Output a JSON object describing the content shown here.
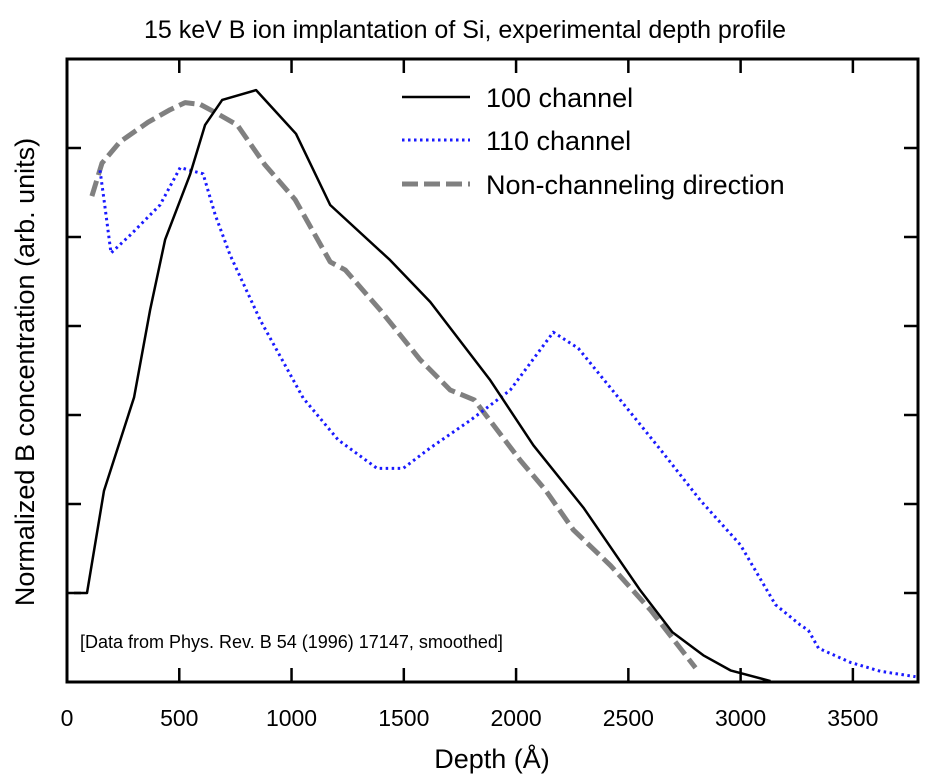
{
  "chart_data": {
    "type": "line",
    "title": "15 keV B ion implantation of Si, experimental depth profile",
    "xlabel": "Depth (Å)",
    "ylabel": "Normalized B concentration (arb. units)",
    "xlim": [
      0,
      3790
    ],
    "ylim": [
      0,
      7
    ],
    "x_ticks": [
      0,
      500,
      1000,
      1500,
      2000,
      2500,
      3000,
      3500
    ],
    "x_tick_labels": [
      "0",
      "500",
      "1000",
      "1500",
      "2000",
      "2500",
      "3000",
      "3500"
    ],
    "y_ticks": [
      1,
      2,
      3,
      4,
      5,
      6
    ],
    "y_tick_labels": [],
    "grid": false,
    "legend_position": "top-right",
    "annotation": "[Data from Phys. Rev. B 54 (1996) 17147, smoothed]",
    "series": [
      {
        "name": "100 channel",
        "color": "#000000",
        "style": "solid",
        "x": [
          31,
          89,
          165,
          299,
          370,
          437,
          548,
          615,
          691,
          842,
          1020,
          1172,
          1439,
          1618,
          1885,
          2077,
          2300,
          2553,
          2696,
          2834,
          2955,
          3133
        ],
        "y": [
          1.0,
          1.0,
          2.15,
          3.2,
          4.18,
          4.97,
          5.7,
          6.26,
          6.54,
          6.65,
          6.16,
          5.36,
          4.74,
          4.27,
          3.39,
          2.66,
          1.96,
          1.03,
          0.56,
          0.3,
          0.13,
          0.01
        ]
      },
      {
        "name": "110 channel",
        "color": "#1a1aff",
        "style": "dotted",
        "x": [
          147,
          165,
          196,
          281,
          414,
          504,
          606,
          660,
          726,
          860,
          1052,
          1208,
          1381,
          1497,
          1618,
          1796,
          1974,
          2166,
          2277,
          2464,
          2643,
          2821,
          2999,
          3155,
          3266,
          3302,
          3347,
          3489,
          3623,
          3779
        ],
        "y": [
          5.75,
          5.42,
          4.82,
          5.02,
          5.36,
          5.78,
          5.71,
          5.25,
          4.8,
          4.07,
          3.19,
          2.72,
          2.4,
          2.4,
          2.63,
          2.94,
          3.28,
          3.93,
          3.75,
          3.17,
          2.61,
          2.04,
          1.54,
          0.87,
          0.64,
          0.58,
          0.38,
          0.22,
          0.12,
          0.06
        ]
      },
      {
        "name": "Non-channeling direction",
        "color": "#808080",
        "style": "dashed",
        "x": [
          111,
          156,
          236,
          361,
          459,
          526,
          593,
          660,
          758,
          882,
          1016,
          1172,
          1239,
          1395,
          1573,
          1707,
          1814,
          2019,
          2130,
          2255,
          2420,
          2598,
          2799
        ],
        "y": [
          5.46,
          5.83,
          6.07,
          6.29,
          6.43,
          6.51,
          6.49,
          6.4,
          6.26,
          5.81,
          5.42,
          4.72,
          4.63,
          4.18,
          3.62,
          3.28,
          3.17,
          2.49,
          2.16,
          1.71,
          1.31,
          0.81,
          0.16
        ]
      }
    ]
  }
}
